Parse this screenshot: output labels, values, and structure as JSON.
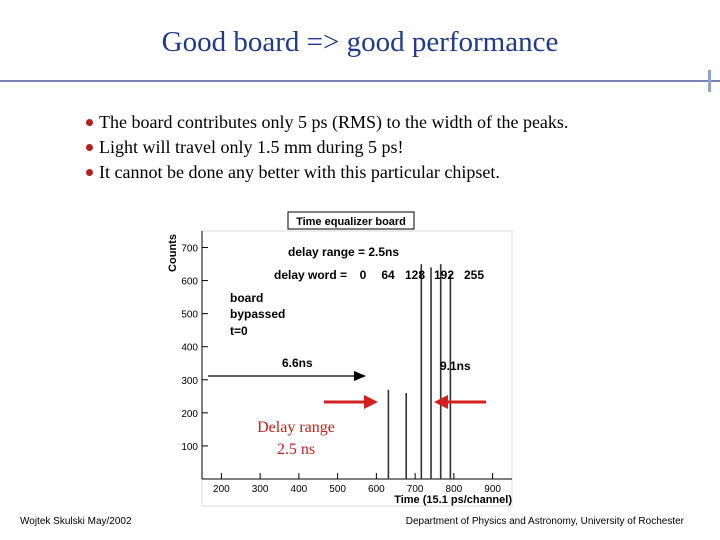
{
  "slide": {
    "title": "Good board => good performance",
    "bullets": [
      "The board contributes only 5 ps (RMS) to the width of the peaks.",
      "Light will travel only 1.5 mm during 5 ps!",
      "It cannot be done any better with this particular chipset."
    ],
    "footer_left": "Wojtek Skulski May/2002",
    "footer_right": "Department of Physics and Astronomy, University of Rochester"
  },
  "colors": {
    "title": "#1f3a8a",
    "bullet_dot": "#b22020",
    "red_arrow": "#d22020",
    "annotation_text": "#c02020"
  },
  "chart_data": {
    "type": "bar",
    "title": "Time equalizer board",
    "xlabel": "Time (15.1 ps/channel)",
    "ylabel": "Counts",
    "xlim": [
      150,
      950
    ],
    "ylim": [
      0,
      750
    ],
    "xticks": [
      200,
      300,
      400,
      500,
      600,
      700,
      800,
      900
    ],
    "yticks": [
      100,
      200,
      300,
      400,
      500,
      600,
      700
    ],
    "grid": false,
    "peaks": [
      {
        "label": "board bypassed, t=0",
        "x": 631,
        "y": 270
      },
      {
        "label": "delay word 0",
        "x": 677,
        "y": 260
      },
      {
        "label": "delay word 64",
        "x": 716,
        "y": 650
      },
      {
        "label": "delay word 128",
        "x": 741,
        "y": 640
      },
      {
        "label": "delay word 192",
        "x": 766,
        "y": 650
      },
      {
        "label": "delay word 255",
        "x": 791,
        "y": 620
      }
    ],
    "annotations": {
      "delay_range": "delay range = 2.5ns",
      "delay_word_prefix": "delay word = ",
      "delay_words": [
        "0",
        "64",
        "128",
        "192",
        "255"
      ],
      "board_bypassed": [
        "board",
        "bypassed",
        "t=0"
      ],
      "arrow_left_label": "6.6ns",
      "arrow_right_label": "9.1ns",
      "red_label": [
        "Delay range",
        "2.5 ns"
      ]
    }
  }
}
